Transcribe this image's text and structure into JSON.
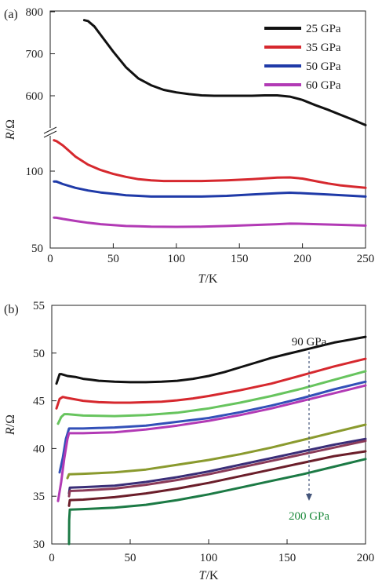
{
  "chart_data": [
    {
      "type": "line",
      "panel_label": "(a)",
      "xlabel_italic": "T",
      "xlabel_unit": "/K",
      "ylabel_italic": "R",
      "ylabel_unit": "/Ω",
      "xlim": [
        0,
        250
      ],
      "x_ticks": [
        "0",
        "50",
        "100",
        "150",
        "200",
        "250"
      ],
      "y_ticks": [
        "50",
        "100",
        "600",
        "700",
        "800"
      ],
      "y_axis_break": true,
      "grid": false,
      "legend_position": "top-right",
      "series": [
        {
          "name": "25 GPa",
          "color": "#111111",
          "x": [
            27,
            30,
            35,
            40,
            50,
            60,
            70,
            80,
            90,
            100,
            110,
            120,
            130,
            140,
            150,
            160,
            170,
            180,
            190,
            200,
            210,
            220,
            230,
            240,
            250
          ],
          "y": [
            780,
            778,
            765,
            745,
            705,
            668,
            641,
            625,
            614,
            608,
            604,
            601,
            600,
            600,
            600,
            600,
            601,
            601,
            598,
            590,
            578,
            567,
            555,
            543,
            530
          ]
        },
        {
          "name": "35 GPa",
          "color": "#d6282e",
          "x": [
            3,
            5,
            10,
            15,
            20,
            30,
            40,
            50,
            60,
            70,
            80,
            90,
            100,
            120,
            140,
            160,
            180,
            190,
            200,
            210,
            220,
            230,
            240,
            250
          ],
          "y": [
            132,
            131,
            126,
            120,
            114,
            106,
            101,
            97.5,
            95,
            93,
            92,
            91.5,
            91.5,
            91.5,
            92,
            93,
            94.3,
            94.5,
            93.5,
            91.5,
            89.5,
            88,
            87,
            86
          ]
        },
        {
          "name": "50 GPa",
          "color": "#1f3aa8",
          "x": [
            3,
            5,
            10,
            20,
            30,
            40,
            50,
            60,
            70,
            80,
            100,
            120,
            140,
            160,
            180,
            190,
            200,
            220,
            250
          ],
          "y": [
            91,
            91,
            89,
            86,
            84,
            82.5,
            81.5,
            80.5,
            80,
            79.5,
            79.5,
            79.5,
            80,
            81,
            82,
            82.3,
            82,
            81,
            79.5
          ]
        },
        {
          "name": "60 GPa",
          "color": "#b23ab5",
          "x": [
            3,
            5,
            10,
            20,
            30,
            40,
            50,
            60,
            70,
            80,
            100,
            120,
            140,
            160,
            180,
            190,
            200,
            220,
            250
          ],
          "y": [
            65.8,
            65.7,
            65,
            63.8,
            62.8,
            62,
            61.5,
            61,
            60.8,
            60.6,
            60.5,
            60.6,
            61,
            61.5,
            62,
            62.3,
            62.2,
            61.8,
            61.2
          ]
        }
      ]
    },
    {
      "type": "line",
      "panel_label": "(b)",
      "xlabel_italic": "T",
      "xlabel_unit": "/K",
      "ylabel_italic": "R",
      "ylabel_unit": "/Ω",
      "xlim": [
        0,
        200
      ],
      "ylim": [
        30,
        55
      ],
      "x_ticks": [
        "0",
        "50",
        "100",
        "150",
        "200"
      ],
      "y_ticks": [
        "30",
        "35",
        "40",
        "45",
        "50",
        "55"
      ],
      "grid": false,
      "annotations": {
        "top": "90 GPa",
        "bottom": "200 GPa",
        "bottom_color": "#1c8a3c",
        "arrow_color": "#44557a"
      },
      "series": [
        {
          "color": "#111111",
          "x": [
            3,
            5,
            6,
            10,
            15,
            20,
            25,
            30,
            40,
            50,
            60,
            70,
            80,
            90,
            100,
            110,
            120,
            130,
            140,
            150,
            160,
            170,
            180,
            190,
            200
          ],
          "y": [
            46.8,
            47.8,
            47.8,
            47.6,
            47.5,
            47.3,
            47.2,
            47.1,
            47,
            46.95,
            46.95,
            47,
            47.1,
            47.3,
            47.6,
            48,
            48.5,
            49,
            49.5,
            49.9,
            50.3,
            50.7,
            51.1,
            51.4,
            51.7
          ]
        },
        {
          "color": "#d6282e",
          "x": [
            3,
            5,
            7,
            10,
            20,
            30,
            40,
            50,
            60,
            70,
            80,
            90,
            100,
            120,
            140,
            160,
            180,
            200
          ],
          "y": [
            44.2,
            45.2,
            45.4,
            45.3,
            45,
            44.85,
            44.8,
            44.8,
            44.85,
            44.9,
            45.05,
            45.25,
            45.5,
            46.1,
            46.8,
            47.7,
            48.6,
            49.4
          ]
        },
        {
          "color": "#67c45e",
          "x": [
            4,
            6,
            8,
            10,
            20,
            40,
            60,
            80,
            100,
            120,
            140,
            160,
            180,
            200
          ],
          "y": [
            42.6,
            43.3,
            43.6,
            43.6,
            43.45,
            43.4,
            43.5,
            43.75,
            44.2,
            44.8,
            45.5,
            46.3,
            47.2,
            48.1
          ]
        },
        {
          "color": "#3350b8",
          "x": [
            5,
            7,
            9,
            11,
            20,
            40,
            60,
            80,
            100,
            120,
            140,
            160,
            180,
            200
          ],
          "y": [
            37.5,
            39,
            41,
            42.1,
            42.1,
            42.2,
            42.4,
            42.8,
            43.2,
            43.8,
            44.5,
            45.3,
            46.2,
            47
          ]
        },
        {
          "color": "#b23ab5",
          "x": [
            4,
            6,
            8,
            10,
            11,
            20,
            40,
            60,
            80,
            100,
            120,
            140,
            160,
            180,
            200
          ],
          "y": [
            34.5,
            36.5,
            39,
            41,
            41.6,
            41.6,
            41.7,
            42,
            42.4,
            42.9,
            43.5,
            44.2,
            45,
            45.8,
            46.6
          ]
        },
        {
          "color": "#8a9a2e",
          "x": [
            10,
            11,
            20,
            40,
            60,
            80,
            100,
            120,
            140,
            160,
            180,
            200
          ],
          "y": [
            36.9,
            37.3,
            37.35,
            37.5,
            37.8,
            38.3,
            38.8,
            39.4,
            40.1,
            40.9,
            41.7,
            42.5
          ]
        },
        {
          "color": "#3a2e78",
          "x": [
            11,
            11.5,
            20,
            40,
            60,
            80,
            100,
            120,
            140,
            160,
            180,
            200
          ],
          "y": [
            35.3,
            35.9,
            35.95,
            36.1,
            36.5,
            37,
            37.6,
            38.3,
            39,
            39.7,
            40.4,
            41
          ]
        },
        {
          "color": "#8a3a58",
          "x": [
            11,
            11.5,
            20,
            40,
            60,
            80,
            100,
            120,
            140,
            160,
            180,
            200
          ],
          "y": [
            35,
            35.55,
            35.6,
            35.8,
            36.2,
            36.7,
            37.3,
            38,
            38.7,
            39.4,
            40.1,
            40.8
          ]
        },
        {
          "color": "#6b1e2a",
          "x": [
            11,
            11.5,
            20,
            40,
            60,
            80,
            100,
            120,
            140,
            160,
            180,
            200
          ],
          "y": [
            34,
            34.6,
            34.65,
            34.9,
            35.3,
            35.8,
            36.4,
            37.1,
            37.8,
            38.5,
            39.2,
            39.7
          ]
        },
        {
          "color": "#1c7a45",
          "x": [
            11,
            11.1,
            11.5,
            20,
            40,
            60,
            80,
            100,
            120,
            140,
            160,
            180,
            200
          ],
          "y": [
            30,
            32.5,
            33.6,
            33.65,
            33.8,
            34.1,
            34.6,
            35.2,
            35.9,
            36.6,
            37.3,
            38.1,
            38.9
          ]
        }
      ]
    }
  ]
}
